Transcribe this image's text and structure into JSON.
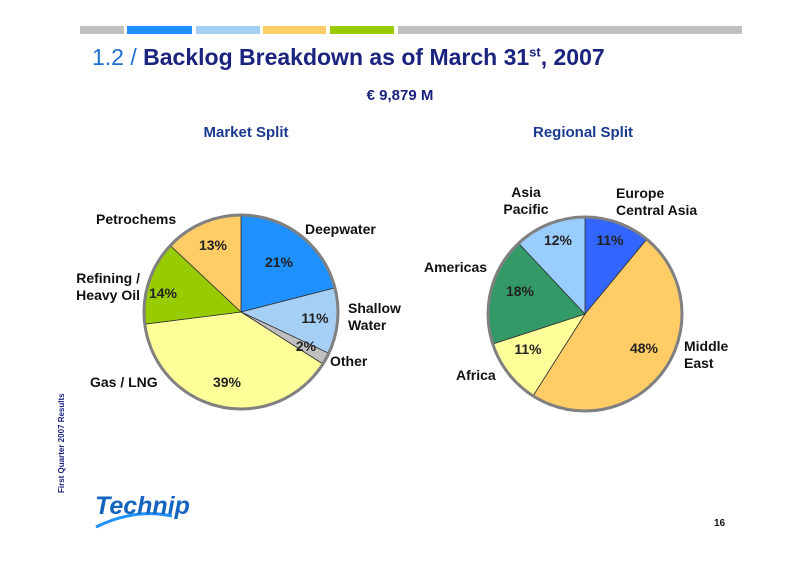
{
  "header": {
    "section": "1.2 /",
    "title": "Backlog Breakdown as of March 31",
    "title_sup": "st",
    "title_end": ", 2007"
  },
  "subtitle": "€ 9,879 M",
  "side_text": "First Quarter 2007 Results",
  "logo": "Technip",
  "page_number": "16",
  "chart_data": [
    {
      "type": "pie",
      "title": "Market Split",
      "categories": [
        "Deepwater",
        "Shallow Water",
        "Other",
        "Gas / LNG",
        "Refining / Heavy Oil",
        "Petrochems"
      ],
      "values": [
        21,
        11,
        2,
        39,
        14,
        13
      ],
      "value_labels": [
        "21%",
        "11%",
        "2%",
        "39%",
        "14%",
        "13%"
      ],
      "colors": [
        "#1e90ff",
        "#a6cff5",
        "#c0c0c0",
        "#ffff99",
        "#99cc00",
        "#ffcc66"
      ]
    },
    {
      "type": "pie",
      "title": "Regional Split",
      "categories": [
        "Europe Central Asia",
        "Middle East",
        "Africa",
        "Americas",
        "Asia Pacific"
      ],
      "values": [
        11,
        48,
        11,
        18,
        12
      ],
      "value_labels": [
        "11%",
        "48%",
        "11%",
        "18%",
        "12%"
      ],
      "colors": [
        "#3366ff",
        "#ffcc66",
        "#ffff99",
        "#339966",
        "#99ccff"
      ]
    }
  ]
}
